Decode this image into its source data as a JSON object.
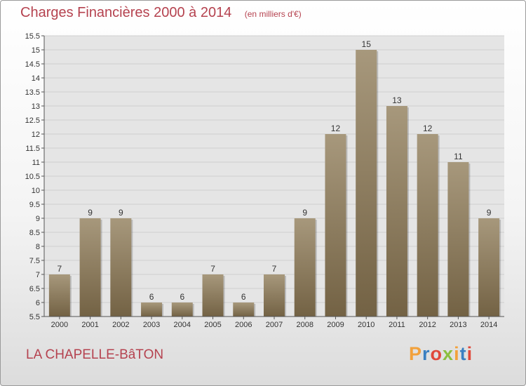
{
  "header": {
    "title": "Charges Financières 2000 à 2014",
    "subtitle": "(en milliers d'€)"
  },
  "commune_name": "LA CHAPELLE-BâTON",
  "logo": {
    "letters": [
      "P",
      "r",
      "o",
      "x",
      "i",
      "t",
      "i"
    ],
    "colors": [
      "#f2a13b",
      "#3a7fc1",
      "#e0483a",
      "#8bbf3e",
      "#f2a13b",
      "#3a7fc1",
      "#e0483a"
    ]
  },
  "colors": {
    "bar_top": "#a7987c",
    "bar_bottom": "#736244",
    "title": "#b5424f",
    "grid": "#d0d0d0",
    "plot_bg": "#e5e5e5"
  },
  "chart_data": {
    "type": "bar",
    "categories": [
      "2000",
      "2001",
      "2002",
      "2003",
      "2004",
      "2005",
      "2006",
      "2007",
      "2008",
      "2009",
      "2010",
      "2011",
      "2012",
      "2013",
      "2014"
    ],
    "values": [
      7,
      9,
      9,
      6,
      6,
      7,
      6,
      7,
      9,
      12,
      15,
      13,
      12,
      11,
      9
    ],
    "ylim": [
      5.5,
      15.5
    ],
    "yticks": [
      "5.5",
      "6",
      "6.5",
      "7",
      "7.5",
      "8",
      "8.5",
      "9",
      "9.5",
      "10",
      "10.5",
      "11",
      "11.5",
      "12",
      "12.5",
      "13",
      "13.5",
      "14",
      "14.5",
      "15",
      "15.5"
    ],
    "grid": true,
    "legend": "none"
  }
}
